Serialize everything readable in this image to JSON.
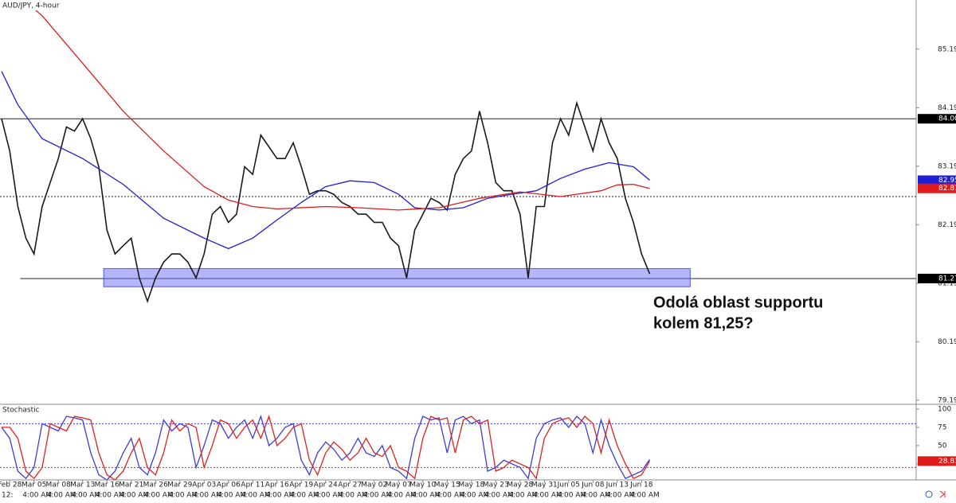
{
  "chart_data": [
    {
      "type": "line",
      "title": "AUD/JPY, 4-hour",
      "annotation": [
        "Odolá oblast supportu",
        "kolem 81,25?"
      ],
      "categories": [
        null,
        "Feb 28",
        null,
        null,
        "Mar 05",
        null,
        null,
        "Mar 08",
        null,
        null,
        "Mar 13",
        null,
        null,
        "Mar 16",
        null,
        null,
        "Mar 21",
        null,
        null,
        "Mar 26",
        null,
        null,
        "Mar 29",
        null,
        null,
        "Apr 03",
        null,
        null,
        "Apr 06",
        null,
        null,
        "Apr 11",
        null,
        null,
        "Apr 16",
        null,
        null,
        "Apr 19",
        null,
        null,
        "Apr 24",
        null,
        null,
        "Apr 27",
        null,
        null,
        "May 02",
        null,
        null,
        "May 07",
        null,
        null,
        "May 10",
        null,
        null,
        "May 15",
        null,
        null,
        "May 18",
        null,
        null,
        "May 23",
        null,
        null,
        "May 28",
        null,
        null,
        "May 31",
        null,
        null,
        "Jun 05",
        null,
        null,
        "Jun 08",
        null,
        null,
        "Jun 13",
        null,
        null,
        "Jun 18",
        null
      ],
      "time_labels": [
        "12:",
        "4:00 AM",
        "4:00 AM",
        "4:00 AM",
        "4:00 AM",
        "4:00 AM",
        "4:00 AM",
        "4:00 AM",
        "4:00 AM",
        "4:00 AM",
        "4:00 AM",
        "4:00 AM",
        "4:00 AM",
        "4:00 AM",
        "4:00 AM",
        "4:00 AM",
        "4:00 AM",
        "4:00 AM",
        "4:00 AM",
        "4:00 AM",
        "4:00 AM",
        "4:00 AM",
        "4:00 AM",
        "4:00 AM",
        "4:00 AM",
        "4:00 AM",
        "4:00 AM"
      ],
      "series": [
        {
          "name": "AUD/JPY",
          "color": "#1a1a1a",
          "values": [
            84.0,
            83.45,
            82.5,
            81.96,
            81.69,
            82.5,
            82.91,
            83.32,
            83.86,
            83.79,
            84.0,
            83.66,
            83.18,
            82.1,
            81.69,
            81.83,
            81.96,
            81.28,
            80.88,
            81.28,
            81.55,
            81.69,
            81.69,
            81.55,
            81.28,
            81.69,
            82.37,
            82.5,
            82.23,
            82.37,
            83.18,
            83.05,
            83.72,
            83.52,
            83.32,
            83.32,
            83.59,
            83.18,
            82.71,
            82.77,
            82.77,
            82.71,
            82.57,
            82.5,
            82.37,
            82.37,
            82.23,
            82.23,
            81.96,
            81.83,
            81.28,
            82.1,
            82.37,
            82.64,
            82.57,
            82.44,
            83.05,
            83.32,
            83.45,
            84.13,
            83.59,
            82.91,
            82.77,
            82.77,
            82.37,
            81.28,
            82.5,
            82.5,
            83.59,
            84.0,
            83.72,
            84.27,
            83.86,
            83.45,
            84.0,
            83.59,
            83.32,
            82.64,
            82.23,
            81.69,
            81.35
          ]
        },
        {
          "name": "MA blue",
          "color": "#1f1fd6",
          "x": [
            0,
            2,
            5,
            10,
            15,
            20,
            25,
            28,
            31,
            34,
            37,
            40,
            43,
            46,
            49,
            51,
            54,
            57,
            60,
            63,
            66,
            69,
            72,
            75,
            78,
            80
          ],
          "values": [
            84.81,
            84.24,
            83.66,
            83.32,
            82.88,
            82.3,
            81.96,
            81.78,
            81.96,
            82.27,
            82.57,
            82.84,
            82.94,
            82.91,
            82.71,
            82.48,
            82.44,
            82.48,
            82.64,
            82.71,
            82.77,
            82.98,
            83.14,
            83.25,
            83.18,
            82.95
          ]
        },
        {
          "name": "MA red",
          "color": "#e01b1b",
          "x": [
            3,
            5,
            10,
            15,
            20,
            25,
            28,
            31,
            34,
            40,
            44,
            49,
            54,
            59,
            64,
            69,
            74,
            76,
            78,
            80
          ],
          "values": [
            86.0,
            85.76,
            84.95,
            84.13,
            83.45,
            82.84,
            82.61,
            82.5,
            82.46,
            82.5,
            82.48,
            82.44,
            82.48,
            82.64,
            82.75,
            82.67,
            82.77,
            82.87,
            82.88,
            82.81
          ]
        }
      ],
      "xlim": [
        -0.2,
        112.9
      ],
      "ylim": [
        79.12,
        86.03
      ],
      "yticks": [
        85.19,
        84.19,
        83.19,
        82.19,
        81.19,
        80.19,
        79.19
      ],
      "levels": [
        {
          "value": 84,
          "style": "solid"
        },
        {
          "value": 82.67,
          "style": "dotted"
        },
        {
          "value": 81.27,
          "style": "solid",
          "from": 2.3
        }
      ],
      "zone": {
        "from": 81.13,
        "to": 81.44,
        "x_range": [
          12.6,
          85
        ]
      },
      "price_tags": [
        {
          "value": 84,
          "label": "84.00",
          "color": "#000000"
        },
        {
          "value": 82.95,
          "label": "82.95",
          "color": "#1f1fd6"
        },
        {
          "value": 82.81,
          "label": "82.81",
          "color": "#e01b1b"
        },
        {
          "value": 81.27,
          "label": "81.27",
          "color": "#000000"
        }
      ]
    },
    {
      "type": "line",
      "title": "Stochastic",
      "series": [
        {
          "name": "%K",
          "color": "#3b3bdd",
          "values": [
            75,
            60,
            15,
            5,
            20,
            80,
            75,
            70,
            90,
            88,
            85,
            40,
            10,
            3,
            15,
            40,
            60,
            20,
            10,
            40,
            85,
            70,
            80,
            75,
            20,
            50,
            85,
            80,
            60,
            75,
            85,
            60,
            90,
            50,
            60,
            75,
            80,
            30,
            10,
            40,
            55,
            45,
            30,
            40,
            60,
            40,
            35,
            50,
            20,
            15,
            5,
            60,
            90,
            85,
            88,
            40,
            85,
            90,
            80,
            85,
            15,
            20,
            30,
            25,
            20,
            5,
            60,
            80,
            85,
            88,
            75,
            90,
            80,
            40,
            85,
            50,
            25,
            5,
            10,
            15,
            31
          ]
        },
        {
          "name": "%D",
          "color": "#e02020",
          "values": [
            75,
            75,
            60,
            15,
            5,
            20,
            80,
            75,
            70,
            90,
            88,
            85,
            40,
            10,
            3,
            15,
            40,
            60,
            20,
            10,
            40,
            85,
            70,
            80,
            75,
            20,
            50,
            85,
            80,
            60,
            75,
            85,
            60,
            90,
            50,
            60,
            75,
            80,
            30,
            10,
            40,
            55,
            45,
            30,
            40,
            60,
            40,
            35,
            50,
            20,
            15,
            5,
            60,
            90,
            85,
            88,
            40,
            85,
            90,
            80,
            85,
            15,
            20,
            30,
            25,
            20,
            5,
            60,
            80,
            85,
            88,
            75,
            90,
            80,
            40,
            85,
            50,
            25,
            5,
            10,
            28.81
          ]
        }
      ],
      "ylim": [
        3,
        106.5
      ],
      "yticks": [
        100,
        75,
        50,
        25
      ],
      "levels": [
        {
          "value": 80,
          "color": "#3b3bdd"
        },
        {
          "value": 20,
          "color": "#e02020"
        }
      ],
      "price_tags": [
        {
          "value": 28.81,
          "label": "28.81",
          "color": "#e01b1b"
        }
      ]
    }
  ]
}
